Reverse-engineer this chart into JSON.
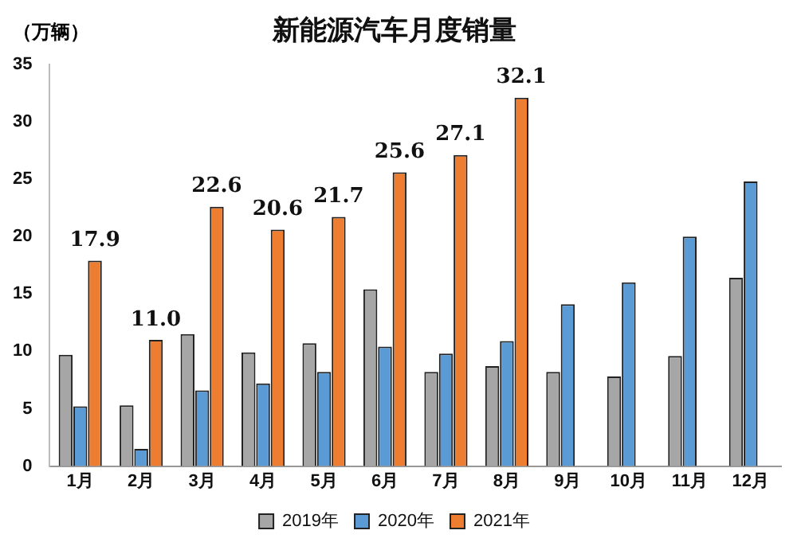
{
  "chart_data": {
    "type": "bar",
    "title": "新能源汽车月度销量",
    "ylabel": "（万辆）",
    "categories": [
      "1月",
      "2月",
      "3月",
      "4月",
      "5月",
      "6月",
      "7月",
      "8月",
      "9月",
      "10月",
      "11月",
      "12月"
    ],
    "series": [
      {
        "name": "2019年",
        "color": "#a6a6a6",
        "values": [
          9.7,
          5.3,
          11.5,
          9.9,
          10.7,
          15.4,
          8.2,
          8.7,
          8.2,
          7.8,
          9.6,
          16.4
        ]
      },
      {
        "name": "2020年",
        "color": "#5b9bd5",
        "values": [
          5.2,
          1.5,
          6.6,
          7.2,
          8.2,
          10.4,
          9.8,
          10.9,
          14.1,
          16.0,
          20.0,
          24.8
        ]
      },
      {
        "name": "2021年",
        "color": "#ed7d31",
        "values": [
          17.9,
          11.0,
          22.6,
          20.6,
          21.7,
          25.6,
          27.1,
          32.1,
          null,
          null,
          null,
          null
        ],
        "value_labels": [
          "17.9",
          "11.0",
          "22.6",
          "20.6",
          "21.7",
          "25.6",
          "27.1",
          "32.1",
          null,
          null,
          null,
          null
        ]
      }
    ],
    "ylim": [
      0,
      35
    ],
    "yticks": [
      0,
      5,
      10,
      15,
      20,
      25,
      30,
      35
    ],
    "grid": false,
    "legend": "bottom"
  }
}
